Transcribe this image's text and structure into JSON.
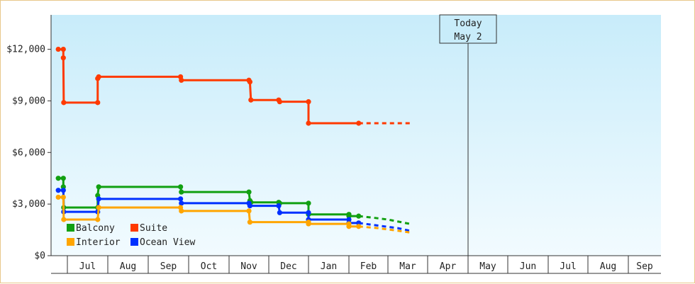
{
  "chart_data": {
    "type": "line",
    "step": true,
    "y_tick_labels": [
      "$0",
      "$3,000",
      "$6,000",
      "$9,000",
      "$12,000"
    ],
    "y_tick_values": [
      0,
      3000,
      6000,
      9000,
      12000
    ],
    "ylim": [
      0,
      14000
    ],
    "x_tick_labels": [
      "Jul",
      "Aug",
      "Sep",
      "Oct",
      "Nov",
      "Dec",
      "Jan",
      "Feb",
      "Mar",
      "Apr",
      "May",
      "Jun",
      "Jul",
      "Aug",
      "Sep"
    ],
    "xlim": [
      0,
      15.3
    ],
    "today": {
      "line1": "Today",
      "line2": "May 2",
      "x": 10.05
    },
    "grid": false,
    "legend_position": "bottom-left",
    "colors": {
      "Balcony": "#11a011",
      "Suite": "#ff3a00",
      "Interior": "#ffa500",
      "Ocean View": "#0030ff"
    },
    "series": [
      {
        "name": "Suite",
        "points": [
          [
            -0.45,
            12000
          ],
          [
            -0.2,
            12000
          ],
          [
            -0.2,
            11500
          ],
          [
            -0.18,
            8900
          ],
          [
            1.5,
            8900
          ],
          [
            1.5,
            10300
          ],
          [
            1.55,
            10400
          ],
          [
            5.6,
            10400
          ],
          [
            5.64,
            10200
          ],
          [
            9.0,
            10200
          ],
          [
            9.05,
            10100
          ],
          [
            9.1,
            9050
          ],
          [
            10.5,
            9050
          ],
          [
            10.55,
            8950
          ],
          [
            12.0,
            8950
          ],
          [
            12.0,
            7700
          ],
          [
            14.5,
            7700
          ]
        ],
        "projection": [
          [
            14.5,
            7700
          ],
          [
            17.1,
            7700
          ]
        ]
      },
      {
        "name": "Balcony",
        "points": [
          [
            -0.45,
            4500
          ],
          [
            -0.2,
            4500
          ],
          [
            -0.2,
            4000
          ],
          [
            -0.18,
            2800
          ],
          [
            1.5,
            2800
          ],
          [
            1.5,
            3500
          ],
          [
            1.55,
            4000
          ],
          [
            5.6,
            4000
          ],
          [
            5.64,
            3700
          ],
          [
            9.0,
            3700
          ],
          [
            9.05,
            3200
          ],
          [
            9.1,
            3100
          ],
          [
            10.5,
            3100
          ],
          [
            10.55,
            3050
          ],
          [
            12.0,
            3050
          ],
          [
            12.0,
            2400
          ],
          [
            14.0,
            2400
          ],
          [
            14.0,
            2300
          ],
          [
            14.5,
            2300
          ]
        ],
        "projection": [
          [
            14.5,
            2300
          ],
          [
            15.3,
            2200
          ],
          [
            16.0,
            2100
          ],
          [
            17.1,
            1850
          ]
        ]
      },
      {
        "name": "Ocean View",
        "points": [
          [
            -0.45,
            3800
          ],
          [
            -0.2,
            3800
          ],
          [
            -0.18,
            2550
          ],
          [
            1.5,
            2550
          ],
          [
            1.55,
            3300
          ],
          [
            5.6,
            3300
          ],
          [
            5.64,
            3050
          ],
          [
            9.0,
            3050
          ],
          [
            9.05,
            2900
          ],
          [
            10.5,
            2900
          ],
          [
            10.55,
            2500
          ],
          [
            12.0,
            2500
          ],
          [
            12.0,
            2100
          ],
          [
            14.0,
            2100
          ],
          [
            14.0,
            1900
          ],
          [
            14.5,
            1900
          ]
        ],
        "projection": [
          [
            14.5,
            1900
          ],
          [
            15.5,
            1750
          ],
          [
            16.5,
            1600
          ],
          [
            17.1,
            1450
          ]
        ]
      },
      {
        "name": "Interior",
        "points": [
          [
            -0.45,
            3400
          ],
          [
            -0.2,
            3400
          ],
          [
            -0.18,
            2100
          ],
          [
            1.5,
            2100
          ],
          [
            1.55,
            2800
          ],
          [
            5.6,
            2800
          ],
          [
            5.64,
            2600
          ],
          [
            9.0,
            2600
          ],
          [
            9.05,
            1950
          ],
          [
            12.0,
            1950
          ],
          [
            12.0,
            1850
          ],
          [
            14.0,
            1850
          ],
          [
            14.0,
            1700
          ],
          [
            14.5,
            1700
          ]
        ],
        "projection": [
          [
            14.5,
            1700
          ],
          [
            15.5,
            1600
          ],
          [
            16.5,
            1450
          ],
          [
            17.1,
            1350
          ]
        ]
      }
    ],
    "legend": [
      {
        "name": "Balcony"
      },
      {
        "name": "Suite"
      },
      {
        "name": "Interior"
      },
      {
        "name": "Ocean View"
      }
    ]
  }
}
